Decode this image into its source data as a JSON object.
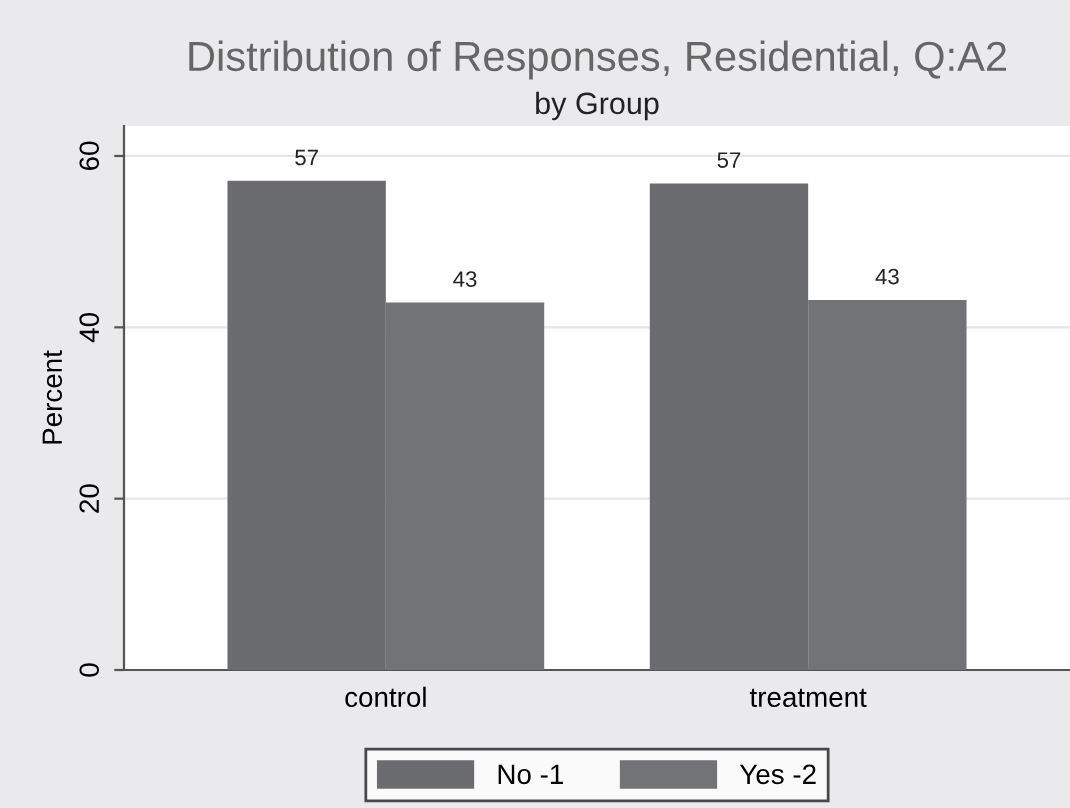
{
  "chart_data": {
    "type": "bar",
    "title": "Distribution of Responses, Residential, Q:A2",
    "subtitle": "by Group",
    "ylabel": "Percent",
    "categories": [
      "control",
      "treatment"
    ],
    "series": [
      {
        "name": "No -1",
        "color": "#6b6c70",
        "values": [
          57.1,
          56.8
        ],
        "value_labels": [
          "57",
          "57"
        ]
      },
      {
        "name": "Yes -2",
        "color": "#727377",
        "values": [
          42.9,
          43.2
        ],
        "value_labels": [
          "43",
          "43"
        ]
      }
    ],
    "ylim": [
      0,
      63.5
    ],
    "yticks": [
      0,
      20,
      40,
      60
    ],
    "grid": "y",
    "legend": "bottom"
  }
}
